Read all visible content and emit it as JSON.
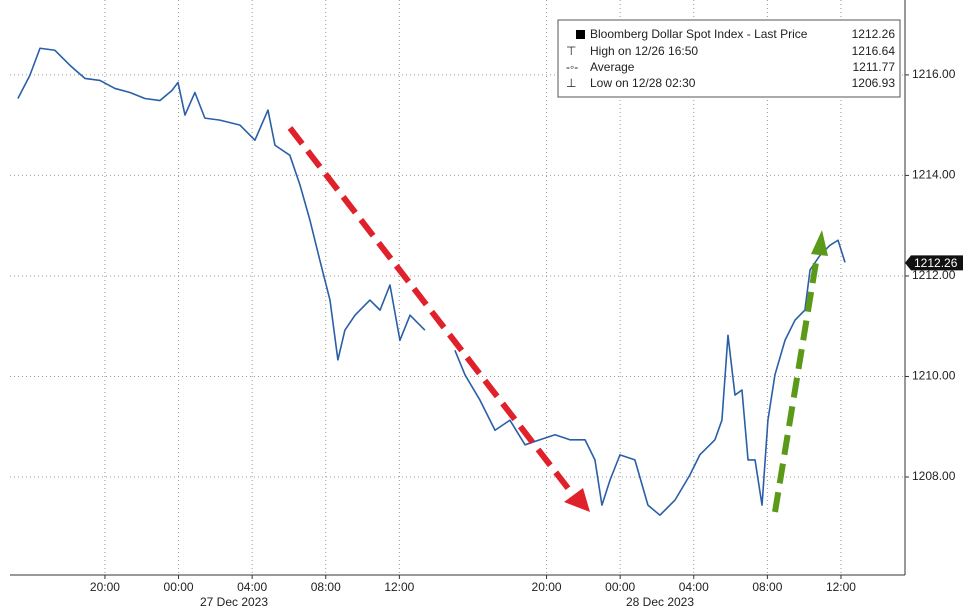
{
  "chart_data": {
    "type": "line",
    "x": [
      -0.73,
      -0.08,
      0.47,
      1.28,
      2.1,
      2.91,
      3.73,
      4.54,
      5.36,
      6.17,
      6.99,
      7.64,
      7.97,
      8.35,
      8.89,
      9.43,
      10.25,
      11.34,
      12.15,
      12.86,
      13.24,
      14.05,
      14.6,
      15.14,
      15.68,
      16.23,
      16.66,
      17.04,
      17.59,
      18.4,
      18.95,
      19.49,
      20.03,
      20.58,
      21.39,
      22.2,
      23.02,
      23.57,
      24.38,
      25.2,
      26.01,
      26.83,
      27.64,
      28.46,
      29.27,
      30.09,
      30.63,
      31.01,
      31.45,
      31.99,
      32.8,
      33.51,
      34.16,
      34.98,
      35.79,
      36.33,
      37.15,
      37.53,
      37.86,
      38.24,
      38.62,
      38.95,
      39.33,
      39.71,
      40.03,
      40.41,
      40.96,
      41.5,
      42.04,
      42.32,
      42.86,
      43.4,
      43.84,
      44.22
    ],
    "series": [
      {
        "name": "Bloomberg Dollar Spot Index - Last Price",
        "color": "#2a5fa8",
        "values": [
          1215.53,
          1215.99,
          1216.53,
          1216.49,
          1216.19,
          1215.93,
          1215.89,
          1215.73,
          1215.65,
          1215.53,
          1215.49,
          1215.69,
          1215.85,
          1215.2,
          1215.65,
          1215.14,
          1215.1,
          1215.0,
          1214.7,
          1215.3,
          1214.6,
          1214.4,
          1213.81,
          1213.11,
          1212.31,
          1211.52,
          1210.33,
          1210.92,
          1211.22,
          1211.52,
          1211.32,
          1211.82,
          1210.72,
          1211.22,
          1210.92,
          null,
          1210.52,
          1210.03,
          1209.53,
          1208.93,
          1209.13,
          1208.64,
          1208.74,
          1208.84,
          1208.74,
          1208.74,
          1208.34,
          1207.44,
          1207.94,
          1208.44,
          1208.34,
          1207.44,
          1207.24,
          1207.54,
          1208.04,
          1208.44,
          1208.74,
          1209.13,
          1210.82,
          1209.63,
          1209.73,
          1208.34,
          1208.34,
          1207.44,
          1209.13,
          1210.03,
          1210.72,
          1211.12,
          1211.32,
          1212.12,
          1212.41,
          1212.61,
          1212.71,
          1212.27
        ]
      }
    ],
    "last_price": 1212.26,
    "legend_stats": [
      {
        "label": "High on 12/26 16:50",
        "value": 1216.64
      },
      {
        "label": "Average",
        "value": 1211.77
      },
      {
        "label": "Low on 12/28 02:30",
        "value": 1206.93
      }
    ],
    "xlim": [
      -1.16,
      47.48
    ],
    "xticks": [
      {
        "value": 4,
        "label": "20:00"
      },
      {
        "value": 8,
        "label": "00:00"
      },
      {
        "value": 12,
        "label": "04:00"
      },
      {
        "value": 16,
        "label": "08:00"
      },
      {
        "value": 20,
        "label": "12:00"
      },
      {
        "value": 28,
        "label": "20:00"
      },
      {
        "value": 32,
        "label": "00:00"
      },
      {
        "value": 36,
        "label": "04:00"
      },
      {
        "value": 40,
        "label": "08:00"
      },
      {
        "value": 44,
        "label": "12:00"
      }
    ],
    "x_date_labels": [
      "27 Dec 2023",
      "28 Dec 2023"
    ],
    "ylim": [
      1206.05,
      1217.49
    ],
    "yticks": [
      {
        "value": 1208,
        "label": "1208.00"
      },
      {
        "value": 1210,
        "label": "1210.00"
      },
      {
        "value": 1212,
        "label": "1212.00"
      },
      {
        "value": 1214,
        "label": "1214.00"
      },
      {
        "value": 1216,
        "label": "1216.00"
      }
    ],
    "grid": true
  }
}
